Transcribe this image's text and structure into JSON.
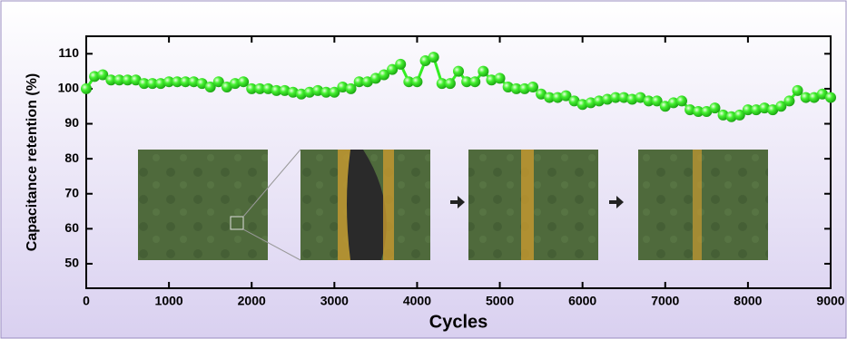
{
  "chart_data": {
    "type": "line",
    "x_label": "Cycles",
    "y_label": "Capacitance retention (%)",
    "x": [
      0,
      100,
      200,
      300,
      400,
      500,
      600,
      700,
      800,
      900,
      1000,
      1100,
      1200,
      1300,
      1400,
      1500,
      1600,
      1700,
      1800,
      1900,
      2000,
      2100,
      2200,
      2300,
      2400,
      2500,
      2600,
      2700,
      2800,
      2900,
      3000,
      3100,
      3200,
      3300,
      3400,
      3500,
      3600,
      3700,
      3800,
      3900,
      4000,
      4100,
      4200,
      4300,
      4400,
      4500,
      4600,
      4700,
      4800,
      4900,
      5000,
      5100,
      5200,
      5300,
      5400,
      5500,
      5600,
      5700,
      5800,
      5900,
      6000,
      6100,
      6200,
      6300,
      6400,
      6500,
      6600,
      6700,
      6800,
      6900,
      7000,
      7100,
      7200,
      7300,
      7400,
      7500,
      7600,
      7700,
      7800,
      7900,
      8000,
      8100,
      8200,
      8300,
      8400,
      8500,
      8600,
      8700,
      8800,
      8900,
      9000
    ],
    "values": [
      100,
      103.5,
      104,
      102.5,
      102.5,
      102.5,
      102.5,
      101.5,
      101.5,
      101.5,
      102,
      102,
      102,
      102,
      101.5,
      100.5,
      102,
      100.5,
      101.5,
      102,
      100,
      100,
      100,
      99.5,
      99.5,
      99,
      98.5,
      99,
      99.5,
      99,
      99,
      100.5,
      100,
      102,
      102,
      103,
      104,
      105.5,
      107,
      102,
      102,
      108,
      109,
      101.5,
      101.5,
      105,
      102,
      102,
      105,
      102.5,
      103,
      100.5,
      100,
      100,
      100.5,
      98.5,
      97.5,
      97.5,
      98,
      96.5,
      95.5,
      96,
      96.5,
      97,
      97.5,
      97.5,
      97,
      97.5,
      96.5,
      96.5,
      95,
      96,
      96.5,
      94,
      93.5,
      93.5,
      94.5,
      92.5,
      92,
      92.5,
      94,
      94,
      94.5,
      94,
      95,
      96.5,
      99.5,
      97.5,
      97.5,
      98.5,
      97.5
    ],
    "color": "#33ee22",
    "xlim": [
      0,
      9000
    ],
    "xticks": [
      0,
      1000,
      2000,
      3000,
      4000,
      5000,
      6000,
      7000,
      8000,
      9000
    ],
    "ylim": [
      43,
      115
    ],
    "yticks": [
      50,
      60,
      70,
      80,
      90,
      100,
      110
    ]
  }
}
